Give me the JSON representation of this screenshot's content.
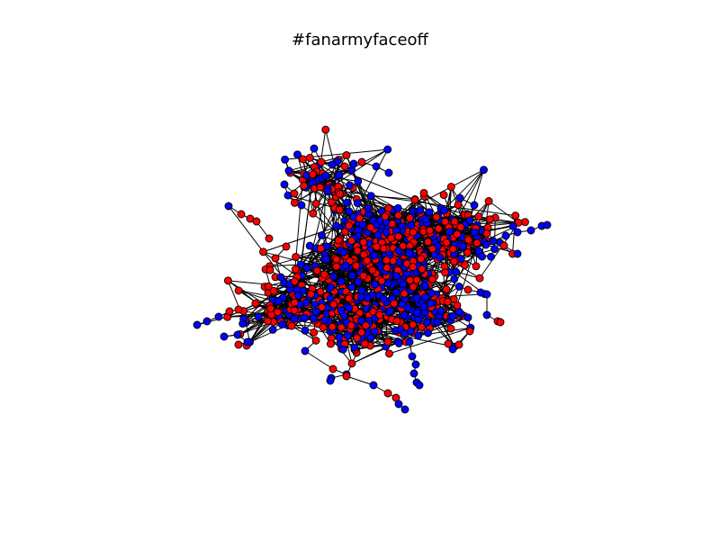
{
  "figure": {
    "title": "#fanarmyfaceoff"
  },
  "graph": {
    "node_groups": [
      {
        "name": "red",
        "color": "#ff0000"
      },
      {
        "name": "blue",
        "color": "#0000ff"
      }
    ],
    "edge_color": "#000000",
    "node_outline_color": "#000000"
  }
}
